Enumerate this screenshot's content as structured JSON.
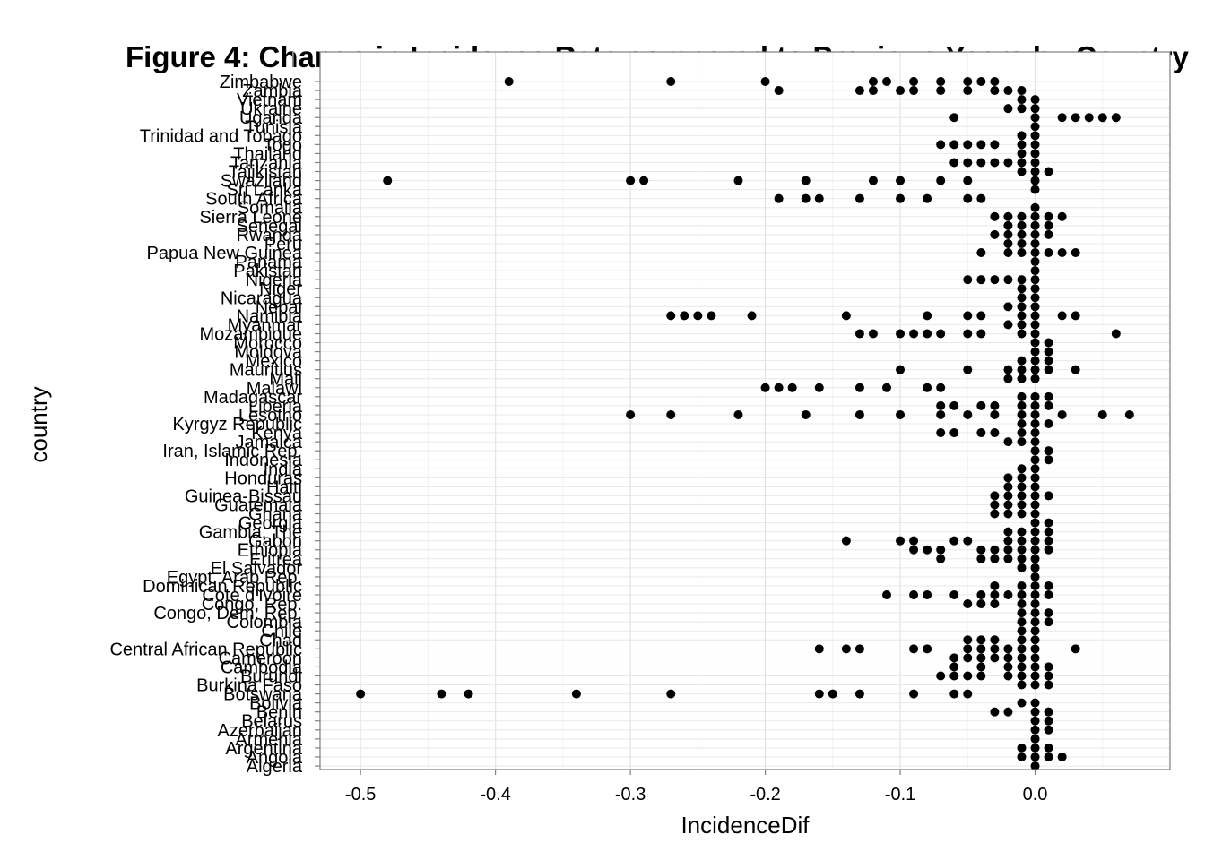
{
  "chart_data": {
    "type": "scatter",
    "title": "Figure 4: Change in Incidence Rate compared to Previous Years by Country",
    "xlabel": "IncidenceDif",
    "ylabel": "country",
    "xlim": [
      -0.53,
      0.1
    ],
    "x_ticks": [
      "-0.5",
      "-0.4",
      "-0.3",
      "-0.2",
      "-0.1",
      "0.0"
    ],
    "x_tick_values": [
      -0.5,
      -0.4,
      -0.3,
      -0.2,
      -0.1,
      0.0
    ],
    "grid": true,
    "point_color": "#000000",
    "categories": [
      "Algeria",
      "Angola",
      "Argentina",
      "Armenia",
      "Azerbaijan",
      "Belarus",
      "Benin",
      "Bolivia",
      "Botswana",
      "Burkina Faso",
      "Burundi",
      "Cambodia",
      "Cameroon",
      "Central African Republic",
      "Chad",
      "Chile",
      "Colombia",
      "Congo, Dem. Rep.",
      "Congo, Rep.",
      "Cote d'Ivoire",
      "Dominican Republic",
      "Egypt, Arab Rep.",
      "El Salvador",
      "Eritrea",
      "Ethiopia",
      "Gabon",
      "Gambia, The",
      "Georgia",
      "Ghana",
      "Guatemala",
      "Guinea-Bissau",
      "Haiti",
      "Honduras",
      "India",
      "Indonesia",
      "Iran, Islamic Rep.",
      "Jamaica",
      "Kenya",
      "Kyrgyz Republic",
      "Lesotho",
      "Liberia",
      "Madagascar",
      "Malawi",
      "Mali",
      "Mauritius",
      "Mexico",
      "Moldova",
      "Morocco",
      "Mozambique",
      "Myanmar",
      "Namibia",
      "Nepal",
      "Nicaragua",
      "Niger",
      "Nigeria",
      "Pakistan",
      "Panama",
      "Papua New Guinea",
      "Peru",
      "Rwanda",
      "Senegal",
      "Sierra Leone",
      "Somalia",
      "South Africa",
      "Sri Lanka",
      "Swaziland",
      "Tajikistan",
      "Tanzania",
      "Thailand",
      "Togo",
      "Trinidad and Tobago",
      "Tunisia",
      "Uganda",
      "Ukraine",
      "Vietnam",
      "Zambia",
      "Zimbabwe"
    ],
    "series": [
      {
        "points": [
          {
            "country": "Zimbabwe",
            "x": [
              -0.39,
              -0.27,
              -0.2,
              -0.12,
              -0.11,
              -0.09,
              -0.07,
              -0.05,
              -0.04,
              -0.03
            ]
          },
          {
            "country": "Zambia",
            "x": [
              -0.19,
              -0.13,
              -0.12,
              -0.1,
              -0.09,
              -0.07,
              -0.05,
              -0.03,
              -0.02,
              -0.01
            ]
          },
          {
            "country": "Vietnam",
            "x": [
              -0.01,
              0.0
            ]
          },
          {
            "country": "Ukraine",
            "x": [
              -0.02,
              -0.01,
              0.0
            ]
          },
          {
            "country": "Uganda",
            "x": [
              -0.06,
              0.0,
              0.02,
              0.03,
              0.04,
              0.05,
              0.06
            ]
          },
          {
            "country": "Tunisia",
            "x": [
              0.0
            ]
          },
          {
            "country": "Trinidad and Tobago",
            "x": [
              -0.01,
              0.0
            ]
          },
          {
            "country": "Togo",
            "x": [
              -0.07,
              -0.06,
              -0.05,
              -0.04,
              -0.03,
              -0.01,
              0.0
            ]
          },
          {
            "country": "Thailand",
            "x": [
              -0.01,
              0.0
            ]
          },
          {
            "country": "Tanzania",
            "x": [
              -0.06,
              -0.05,
              -0.04,
              -0.03,
              -0.02,
              -0.01,
              0.0
            ]
          },
          {
            "country": "Tajikistan",
            "x": [
              -0.01,
              0.0,
              0.01
            ]
          },
          {
            "country": "Swaziland",
            "x": [
              -0.48,
              -0.3,
              -0.29,
              -0.22,
              -0.17,
              -0.12,
              -0.1,
              -0.07,
              -0.05,
              0.0
            ]
          },
          {
            "country": "Sri Lanka",
            "x": [
              0.0
            ]
          },
          {
            "country": "South Africa",
            "x": [
              -0.19,
              -0.17,
              -0.16,
              -0.13,
              -0.1,
              -0.08,
              -0.05,
              -0.04
            ]
          },
          {
            "country": "Somalia",
            "x": [
              0.0
            ]
          },
          {
            "country": "Sierra Leone",
            "x": [
              -0.03,
              -0.02,
              -0.01,
              0.0,
              0.01,
              0.02
            ]
          },
          {
            "country": "Senegal",
            "x": [
              -0.02,
              -0.01,
              0.0,
              0.01
            ]
          },
          {
            "country": "Rwanda",
            "x": [
              -0.03,
              -0.02,
              -0.01,
              0.0,
              0.01
            ]
          },
          {
            "country": "Peru",
            "x": [
              -0.02,
              -0.01,
              0.0
            ]
          },
          {
            "country": "Papua New Guinea",
            "x": [
              -0.04,
              -0.02,
              -0.01,
              0.0,
              0.01,
              0.02,
              0.03
            ]
          },
          {
            "country": "Panama",
            "x": [
              0.0
            ]
          },
          {
            "country": "Pakistan",
            "x": [
              0.0
            ]
          },
          {
            "country": "Nigeria",
            "x": [
              -0.05,
              -0.04,
              -0.03,
              -0.02,
              -0.01,
              0.0
            ]
          },
          {
            "country": "Niger",
            "x": [
              -0.01,
              0.0
            ]
          },
          {
            "country": "Nicaragua",
            "x": [
              -0.01,
              0.0
            ]
          },
          {
            "country": "Nepal",
            "x": [
              -0.02,
              -0.01,
              0.0
            ]
          },
          {
            "country": "Namibia",
            "x": [
              -0.27,
              -0.26,
              -0.25,
              -0.24,
              -0.21,
              -0.14,
              -0.08,
              -0.05,
              -0.04,
              -0.01,
              0.0,
              0.02,
              0.03
            ]
          },
          {
            "country": "Myanmar",
            "x": [
              -0.02,
              -0.01,
              0.0
            ]
          },
          {
            "country": "Mozambique",
            "x": [
              -0.13,
              -0.12,
              -0.1,
              -0.09,
              -0.08,
              -0.07,
              -0.05,
              -0.04,
              -0.01,
              0.0,
              0.06
            ]
          },
          {
            "country": "Morocco",
            "x": [
              0.0,
              0.01
            ]
          },
          {
            "country": "Moldova",
            "x": [
              0.0,
              0.01
            ]
          },
          {
            "country": "Mexico",
            "x": [
              -0.01,
              0.0,
              0.01
            ]
          },
          {
            "country": "Mauritius",
            "x": [
              -0.1,
              -0.05,
              -0.02,
              -0.01,
              0.0,
              0.01,
              0.03
            ]
          },
          {
            "country": "Mali",
            "x": [
              -0.02,
              -0.01,
              0.0
            ]
          },
          {
            "country": "Malawi",
            "x": [
              -0.2,
              -0.19,
              -0.18,
              -0.16,
              -0.13,
              -0.11,
              -0.08,
              -0.07
            ]
          },
          {
            "country": "Madagascar",
            "x": [
              -0.01,
              0.0,
              0.01
            ]
          },
          {
            "country": "Liberia",
            "x": [
              -0.07,
              -0.06,
              -0.04,
              -0.03,
              -0.01,
              0.0,
              0.01
            ]
          },
          {
            "country": "Lesotho",
            "x": [
              -0.3,
              -0.27,
              -0.22,
              -0.17,
              -0.13,
              -0.1,
              -0.07,
              -0.05,
              -0.03,
              -0.01,
              0.0,
              0.02,
              0.05,
              0.07
            ]
          },
          {
            "country": "Kyrgyz Republic",
            "x": [
              -0.01,
              0.0,
              0.01
            ]
          },
          {
            "country": "Kenya",
            "x": [
              -0.07,
              -0.06,
              -0.04,
              -0.03,
              -0.01,
              0.0
            ]
          },
          {
            "country": "Jamaica",
            "x": [
              -0.02,
              -0.01,
              0.0
            ]
          },
          {
            "country": "Iran, Islamic Rep.",
            "x": [
              0.0,
              0.01
            ]
          },
          {
            "country": "Indonesia",
            "x": [
              0.0,
              0.01
            ]
          },
          {
            "country": "India",
            "x": [
              -0.01,
              0.0
            ]
          },
          {
            "country": "Honduras",
            "x": [
              -0.02,
              -0.01,
              0.0
            ]
          },
          {
            "country": "Haiti",
            "x": [
              -0.02,
              -0.01,
              0.0
            ]
          },
          {
            "country": "Guinea-Bissau",
            "x": [
              -0.03,
              -0.02,
              -0.01,
              0.0,
              0.01
            ]
          },
          {
            "country": "Guatemala",
            "x": [
              -0.03,
              -0.02,
              -0.01,
              0.0
            ]
          },
          {
            "country": "Ghana",
            "x": [
              -0.03,
              -0.02,
              -0.01,
              0.0
            ]
          },
          {
            "country": "Georgia",
            "x": [
              0.0,
              0.01
            ]
          },
          {
            "country": "Gambia, The",
            "x": [
              -0.02,
              -0.01,
              0.0,
              0.01
            ]
          },
          {
            "country": "Gabon",
            "x": [
              -0.14,
              -0.1,
              -0.09,
              -0.06,
              -0.05,
              -0.02,
              -0.01,
              0.0,
              0.01
            ]
          },
          {
            "country": "Ethiopia",
            "x": [
              -0.09,
              -0.08,
              -0.07,
              -0.04,
              -0.03,
              -0.02,
              -0.01,
              0.0,
              0.01
            ]
          },
          {
            "country": "Eritrea",
            "x": [
              -0.07,
              -0.04,
              -0.03,
              -0.02,
              -0.01,
              0.0
            ]
          },
          {
            "country": "El Salvador",
            "x": [
              -0.01,
              0.0
            ]
          },
          {
            "country": "Egypt, Arab Rep.",
            "x": [
              0.0
            ]
          },
          {
            "country": "Dominican Republic",
            "x": [
              -0.03,
              -0.01,
              0.0,
              0.01
            ]
          },
          {
            "country": "Cote d'Ivoire",
            "x": [
              -0.11,
              -0.09,
              -0.08,
              -0.06,
              -0.04,
              -0.03,
              -0.02,
              -0.01,
              0.0,
              0.01
            ]
          },
          {
            "country": "Congo, Rep.",
            "x": [
              -0.05,
              -0.04,
              -0.03,
              -0.01,
              0.0
            ]
          },
          {
            "country": "Congo, Dem. Rep.",
            "x": [
              -0.01,
              0.0,
              0.01
            ]
          },
          {
            "country": "Colombia",
            "x": [
              -0.01,
              0.0,
              0.01
            ]
          },
          {
            "country": "Chile",
            "x": [
              -0.01,
              0.0
            ]
          },
          {
            "country": "Chad",
            "x": [
              -0.05,
              -0.04,
              -0.03,
              -0.01,
              0.0
            ]
          },
          {
            "country": "Central African Republic",
            "x": [
              -0.16,
              -0.14,
              -0.13,
              -0.09,
              -0.08,
              -0.05,
              -0.04,
              -0.03,
              -0.02,
              -0.01,
              0.0,
              0.03
            ]
          },
          {
            "country": "Cameroon",
            "x": [
              -0.06,
              -0.05,
              -0.04,
              -0.03,
              -0.02,
              -0.01,
              0.0
            ]
          },
          {
            "country": "Cambodia",
            "x": [
              -0.06,
              -0.04,
              -0.02,
              -0.01,
              0.0,
              0.01
            ]
          },
          {
            "country": "Burundi",
            "x": [
              -0.07,
              -0.06,
              -0.05,
              -0.04,
              -0.02,
              -0.01,
              0.0,
              0.01
            ]
          },
          {
            "country": "Burkina Faso",
            "x": [
              -0.01,
              0.0,
              0.01
            ]
          },
          {
            "country": "Botswana",
            "x": [
              -0.5,
              -0.44,
              -0.42,
              -0.34,
              -0.27,
              -0.16,
              -0.15,
              -0.13,
              -0.09,
              -0.06,
              -0.05
            ]
          },
          {
            "country": "Bolivia",
            "x": [
              -0.01,
              0.0
            ]
          },
          {
            "country": "Benin",
            "x": [
              -0.03,
              -0.02,
              0.0,
              0.01
            ]
          },
          {
            "country": "Belarus",
            "x": [
              0.0,
              0.01
            ]
          },
          {
            "country": "Azerbaijan",
            "x": [
              0.0,
              0.01
            ]
          },
          {
            "country": "Armenia",
            "x": [
              0.0
            ]
          },
          {
            "country": "Argentina",
            "x": [
              -0.01,
              0.0,
              0.01
            ]
          },
          {
            "country": "Angola",
            "x": [
              -0.01,
              0.0,
              0.01,
              0.02
            ]
          },
          {
            "country": "Algeria",
            "x": [
              0.0
            ]
          }
        ]
      }
    ]
  }
}
